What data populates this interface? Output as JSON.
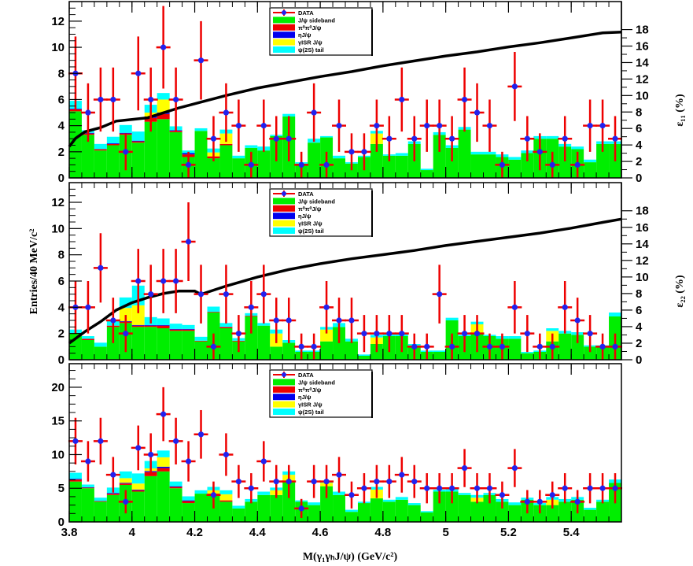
{
  "figure": {
    "xlabel": "M(γ₁γₕJ/ψ)  (GeV/c²)",
    "ylabel": "Entries/40 MeV/c²",
    "xlim": [
      3.8,
      5.56
    ],
    "x_ticks": [
      "3.8",
      "4",
      "4.2",
      "4.4",
      "4.6",
      "4.8",
      "5",
      "5.2",
      "5.4"
    ],
    "x_tick_values": [
      3.8,
      4.0,
      4.2,
      4.4,
      4.6,
      4.8,
      5.0,
      5.2,
      5.4
    ],
    "bin_width": 0.04,
    "bin_centers": [
      3.82,
      3.86,
      3.9,
      3.94,
      3.98,
      4.02,
      4.06,
      4.1,
      4.14,
      4.18,
      4.22,
      4.26,
      4.3,
      4.34,
      4.38,
      4.42,
      4.46,
      4.5,
      4.54,
      4.58,
      4.62,
      4.66,
      4.7,
      4.74,
      4.78,
      4.82,
      4.86,
      4.9,
      4.94,
      4.98,
      5.02,
      5.06,
      5.1,
      5.14,
      5.18,
      5.22,
      5.26,
      5.3,
      5.34,
      5.38,
      5.42,
      5.46,
      5.5,
      5.54
    ],
    "colors": {
      "sideband": "#00ee00",
      "pi0pi0": "#ee0000",
      "eta": "#0000ee",
      "isr": "#ffff00",
      "psi2s": "#00ffff",
      "data_point": "#2222ee",
      "data_error": "#ee0000",
      "efficiency": "#000000"
    },
    "legend": {
      "data": "DATA",
      "sideband": "J/ψ sideband",
      "pi0pi0": "π⁰π⁰J/ψ",
      "eta": "ηJ/ψ",
      "isr": "γISR J/ψ",
      "psi2s": "ψ(2S) tail"
    }
  },
  "chart_data": [
    {
      "type": "bar",
      "title": "",
      "stacked": true,
      "ylim": [
        0,
        13.5
      ],
      "y_ticks": [
        "0",
        "2",
        "4",
        "6",
        "8",
        "10",
        "12"
      ],
      "y_tick_values": [
        0,
        2,
        4,
        6,
        8,
        10,
        12
      ],
      "y2_label": "ε₁₁ (%)",
      "y2_ticks": [
        "0",
        "2",
        "4",
        "6",
        "8",
        "10",
        "12",
        "14",
        "16",
        "18"
      ],
      "y2_tick_values": [
        0,
        2,
        4,
        6,
        8,
        10,
        12,
        14,
        16,
        18
      ],
      "y2lim": [
        0,
        21.4
      ],
      "data": [
        8,
        5,
        6,
        6,
        2,
        8,
        6,
        10,
        6,
        1,
        9,
        3,
        5,
        4,
        1,
        4,
        3,
        3,
        1,
        5,
        1,
        4,
        2,
        2,
        4,
        3,
        6,
        3,
        4,
        4,
        3,
        6,
        5,
        4,
        1,
        7,
        3,
        2,
        1,
        3,
        1,
        4,
        4,
        3
      ],
      "sideband": [
        5.1,
        3.3,
        2.1,
        2.5,
        3.3,
        2.7,
        4.3,
        4.5,
        3.5,
        1.6,
        3.6,
        1.5,
        2.5,
        1.5,
        2.3,
        2.1,
        3.2,
        4.7,
        1.1,
        2.7,
        3.1,
        1.5,
        1.1,
        1.6,
        2.6,
        1.7,
        1.7,
        2.6,
        0.6,
        3.3,
        2.3,
        3.7,
        1.8,
        1.8,
        1.6,
        1.4,
        1.9,
        3.0,
        3.0,
        2.4,
        2.2,
        1.2,
        2.6,
        2.6
      ],
      "pi0pi0": [
        0.15,
        0.1,
        0.1,
        0.1,
        0.1,
        0.1,
        0.3,
        0.4,
        0.1,
        0.2,
        0,
        0.15,
        0.1,
        0,
        0,
        0,
        0,
        0,
        0,
        0,
        0,
        0,
        0,
        0,
        0,
        0,
        0,
        0,
        0,
        0,
        0,
        0,
        0,
        0,
        0,
        0,
        0,
        0,
        0,
        0,
        0,
        0,
        0,
        0
      ],
      "eta": [
        0.05,
        0.05,
        0,
        0.05,
        0.05,
        0.05,
        0.1,
        0.1,
        0.05,
        0.1,
        0,
        0,
        0,
        0,
        0,
        0,
        0,
        0,
        0,
        0,
        0,
        0,
        0,
        0,
        0,
        0,
        0,
        0,
        0,
        0,
        0,
        0,
        0,
        0,
        0,
        0,
        0,
        0,
        0,
        0,
        0,
        0,
        0,
        0
      ],
      "isr": [
        0,
        0,
        0,
        0,
        0,
        0,
        0.3,
        1.0,
        0,
        0,
        0,
        0.3,
        0.8,
        0,
        0,
        0,
        0,
        0,
        0,
        0,
        0,
        0,
        0,
        0,
        0.8,
        0,
        0,
        0,
        0,
        0,
        0,
        0,
        0,
        0,
        0,
        0,
        0,
        0,
        0,
        0,
        0,
        0,
        0,
        0
      ],
      "psi2s": [
        0.6,
        0.2,
        0.4,
        0.5,
        0.6,
        0.7,
        0.6,
        0.5,
        0.3,
        0.2,
        0.2,
        0.3,
        0.3,
        0.2,
        0.2,
        0.3,
        0.1,
        0.2,
        0.1,
        0.3,
        0.1,
        0.2,
        0.1,
        0.1,
        0.2,
        0.1,
        0.2,
        0.2,
        0.1,
        0.2,
        0.2,
        0.2,
        0.2,
        0.2,
        0.2,
        0.2,
        0.2,
        0.2,
        0.2,
        0.2,
        0.2,
        0.2,
        0.2,
        0.2
      ],
      "efficiency": {
        "x": [
          3.8,
          3.82,
          3.85,
          3.9,
          3.95,
          4.0,
          4.05,
          4.1,
          4.15,
          4.2,
          4.3,
          4.4,
          4.5,
          4.6,
          4.7,
          4.8,
          4.9,
          5.0,
          5.1,
          5.2,
          5.3,
          5.4,
          5.5,
          5.56
        ],
        "y": [
          3.8,
          4.8,
          5.6,
          6.1,
          6.9,
          7.1,
          7.3,
          7.9,
          8.5,
          9.0,
          10.0,
          10.9,
          11.6,
          12.3,
          12.9,
          13.6,
          14.2,
          14.8,
          15.3,
          15.9,
          16.4,
          17.0,
          17.6,
          17.7
        ]
      }
    },
    {
      "type": "bar",
      "title": "",
      "stacked": true,
      "ylim": [
        0,
        13.5
      ],
      "y_ticks": [
        "0",
        "2",
        "4",
        "6",
        "8",
        "10",
        "12"
      ],
      "y_tick_values": [
        0,
        2,
        4,
        6,
        8,
        10,
        12
      ],
      "y2_label": "ε₂₂ (%)",
      "y2_ticks": [
        "0",
        "2",
        "4",
        "6",
        "8",
        "10",
        "12",
        "14",
        "16",
        "18"
      ],
      "y2_tick_values": [
        0,
        2,
        4,
        6,
        8,
        10,
        12,
        14,
        16,
        18
      ],
      "y2lim": [
        0,
        21.4
      ],
      "data": [
        4,
        4,
        7,
        3,
        2,
        6,
        5,
        6,
        6,
        9,
        5,
        1,
        5,
        2,
        4,
        5,
        3,
        3,
        1,
        1,
        4,
        3,
        3,
        2,
        2,
        2,
        2,
        1,
        1,
        5,
        1,
        2,
        2,
        1,
        1,
        4,
        2,
        1,
        1,
        4,
        3,
        2,
        1,
        1
      ],
      "sideband": [
        2.0,
        1.5,
        1.0,
        2.5,
        2.8,
        2.5,
        2.5,
        2.4,
        2.2,
        2.2,
        1.4,
        3.6,
        2.4,
        1.4,
        3.3,
        2.6,
        1.0,
        1.3,
        0.6,
        0.6,
        1.4,
        2.5,
        1.4,
        0.3,
        1.2,
        1.8,
        1.8,
        1.1,
        0.6,
        0.6,
        3.0,
        1.8,
        2.0,
        1.8,
        1.6,
        1.6,
        0.5,
        0.6,
        1.4,
        2.0,
        1.9,
        1.0,
        1.0,
        3.3
      ],
      "pi0pi0": [
        0,
        0.1,
        0,
        0.1,
        0.1,
        0.1,
        0.1,
        0.2,
        0.1,
        0.1,
        0.05,
        0.05,
        0.1,
        0.05,
        0.05,
        0,
        0,
        0,
        0,
        0,
        0,
        0,
        0,
        0,
        0,
        0,
        0,
        0,
        0,
        0,
        0,
        0,
        0,
        0,
        0,
        0,
        0,
        0,
        0,
        0,
        0,
        0,
        0,
        0
      ],
      "eta": [
        0,
        0,
        0,
        0,
        0.05,
        0.05,
        0.05,
        0.05,
        0.05,
        0.05,
        0,
        0,
        0,
        0,
        0,
        0,
        0,
        0,
        0,
        0,
        0,
        0,
        0,
        0,
        0,
        0,
        0,
        0,
        0,
        0,
        0,
        0,
        0,
        0,
        0,
        0,
        0,
        0,
        0,
        0,
        0,
        0,
        0,
        0
      ],
      "isr": [
        0,
        0,
        0,
        0,
        1.0,
        1.5,
        0,
        0,
        0,
        0,
        0,
        0,
        0,
        0,
        0,
        0,
        1.0,
        0,
        0,
        0,
        0.9,
        0,
        0,
        0,
        0.5,
        0,
        0,
        0,
        0,
        0,
        0,
        0,
        0.7,
        0,
        0,
        0,
        0,
        0,
        0.8,
        0,
        0,
        0,
        0,
        0
      ],
      "psi2s": [
        0.3,
        0.2,
        0.3,
        0.4,
        0.8,
        1.5,
        0.6,
        0.5,
        0.4,
        0.3,
        0.3,
        0.4,
        0.3,
        0.2,
        0.2,
        0.2,
        0.3,
        0.2,
        0.1,
        0.1,
        0.2,
        0.3,
        0.2,
        0.1,
        0.2,
        0.2,
        0.2,
        0.1,
        0.1,
        0.1,
        0.2,
        0.1,
        0.2,
        0.1,
        0.2,
        0.2,
        0.1,
        0.1,
        0.2,
        0.2,
        0.2,
        0.1,
        0.1,
        0.3
      ],
      "efficiency": {
        "x": [
          3.8,
          3.85,
          3.9,
          3.95,
          4.0,
          4.05,
          4.1,
          4.15,
          4.2,
          4.22,
          4.3,
          4.4,
          4.5,
          4.6,
          4.7,
          4.8,
          4.9,
          5.0,
          5.1,
          5.2,
          5.3,
          5.4,
          5.5,
          5.56
        ],
        "y": [
          2.0,
          3.4,
          4.6,
          6.0,
          6.9,
          7.5,
          8.0,
          8.3,
          8.3,
          7.9,
          8.9,
          10.0,
          10.9,
          11.6,
          12.2,
          12.7,
          13.2,
          13.8,
          14.3,
          14.8,
          15.3,
          15.9,
          16.6,
          17.0
        ]
      }
    },
    {
      "type": "bar",
      "title": "",
      "stacked": true,
      "ylim": [
        0,
        23.5
      ],
      "y_ticks": [
        "0",
        "5",
        "10",
        "15",
        "20"
      ],
      "y_tick_values": [
        0,
        5,
        10,
        15,
        20
      ],
      "data": [
        12,
        9,
        12,
        7,
        3,
        11,
        10,
        16,
        12,
        9,
        13,
        4,
        10,
        6,
        5,
        9,
        6,
        6,
        2,
        6,
        6,
        7,
        4,
        5,
        6,
        6,
        7,
        6,
        5,
        5,
        5,
        8,
        5,
        5,
        4,
        8,
        3,
        3,
        4,
        5,
        3,
        5,
        5,
        5
      ],
      "sideband": [
        6.0,
        5.0,
        3.0,
        4.0,
        5.5,
        4.5,
        6.8,
        7.5,
        5.0,
        2.8,
        4.2,
        4.0,
        3.0,
        2.0,
        3.0,
        4.0,
        4.0,
        6.0,
        3.0,
        2.5,
        5.3,
        4.0,
        1.5,
        2.8,
        3.5,
        3.0,
        3.3,
        2.5,
        1.4,
        4.5,
        4.5,
        4.0,
        3.0,
        4.0,
        3.0,
        2.5,
        3.3,
        2.5,
        2.5,
        3.0,
        3.3,
        1.8,
        3.0,
        5.8
      ],
      "pi0pi0": [
        0.3,
        0.1,
        0.1,
        0.2,
        0.2,
        0.2,
        0.6,
        0.5,
        0.2,
        0.3,
        0,
        0.2,
        0.2,
        0,
        0,
        0,
        0,
        0,
        0,
        0,
        0,
        0,
        0,
        0,
        0,
        0,
        0,
        0,
        0,
        0,
        0,
        0,
        0,
        0,
        0,
        0,
        0,
        0,
        0,
        0,
        0,
        0,
        0,
        0
      ],
      "eta": [
        0.1,
        0.05,
        0,
        0.1,
        0.1,
        0.1,
        0.15,
        0.2,
        0.1,
        0.1,
        0,
        0,
        0,
        0,
        0,
        0,
        0,
        0,
        0,
        0,
        0,
        0,
        0,
        0,
        0,
        0,
        0,
        0,
        0,
        0,
        0,
        0,
        0,
        0,
        0,
        0,
        0,
        0,
        0,
        0,
        0,
        0,
        0,
        0
      ],
      "isr": [
        0,
        0,
        0,
        0,
        0.7,
        0.9,
        0.4,
        1.4,
        0,
        0,
        0,
        0.5,
        0.9,
        0,
        0,
        0,
        0.7,
        1.0,
        0,
        0,
        0.5,
        0,
        0,
        0,
        1.3,
        0,
        0,
        0,
        0,
        0,
        0,
        0,
        0.6,
        0,
        0,
        0,
        0,
        0,
        0.8,
        0,
        0,
        0,
        0,
        0
      ],
      "psi2s": [
        0.9,
        0.4,
        0.5,
        0.8,
        1.0,
        1.5,
        1.1,
        1.0,
        0.7,
        0.6,
        0.5,
        0.5,
        0.6,
        0.4,
        0.4,
        0.5,
        0.4,
        0.5,
        0.2,
        0.4,
        0.3,
        0.5,
        0.3,
        0.2,
        0.4,
        0.3,
        0.4,
        0.3,
        0.2,
        0.3,
        0.4,
        0.3,
        0.4,
        0.3,
        0.4,
        0.4,
        0.3,
        0.3,
        0.4,
        0.4,
        0.4,
        0.3,
        0.3,
        0.5
      ]
    }
  ]
}
